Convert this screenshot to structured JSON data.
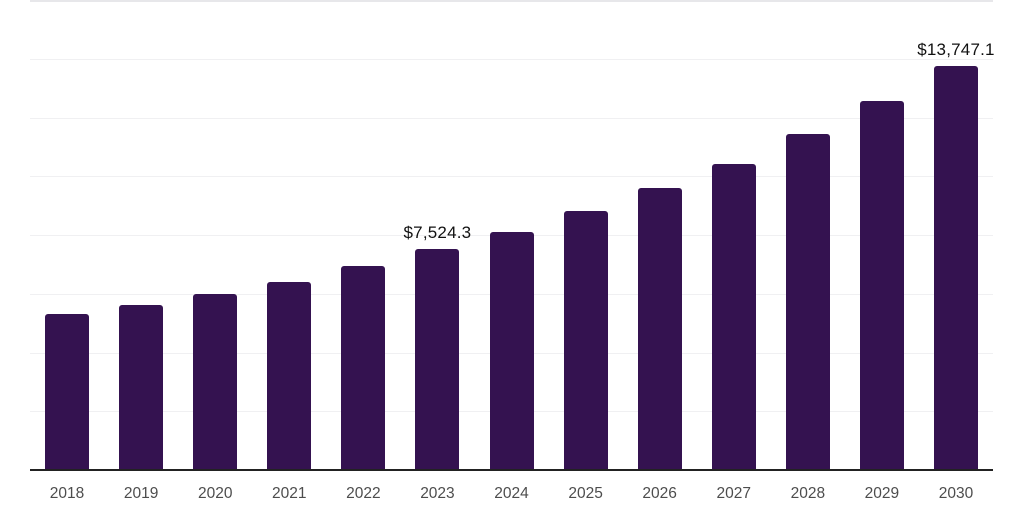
{
  "chart_data": {
    "type": "bar",
    "categories": [
      "2018",
      "2019",
      "2020",
      "2021",
      "2022",
      "2023",
      "2024",
      "2025",
      "2026",
      "2027",
      "2028",
      "2029",
      "2030"
    ],
    "values": [
      5310,
      5635,
      5990,
      6400,
      6960,
      7524.3,
      8115,
      8815,
      9600,
      10415,
      11435,
      12560,
      13747.1
    ],
    "value_labels": [
      {
        "category": "2023",
        "text": "$7,524.3"
      },
      {
        "category": "2030",
        "text": "$13,747.1"
      }
    ],
    "title": "",
    "xlabel": "",
    "ylabel": "",
    "ylim": [
      0,
      16000
    ],
    "gridline_interval": 2000,
    "grid": "horizontal",
    "legend_position": "none",
    "colors": {
      "bar": "#341250",
      "axis_line": "#222222",
      "gridline": "#f0f0f2",
      "gridline_top": "#e7e7ea",
      "tick_label": "#4d4d4d",
      "value_label": "#111111",
      "background": "#ffffff"
    }
  }
}
